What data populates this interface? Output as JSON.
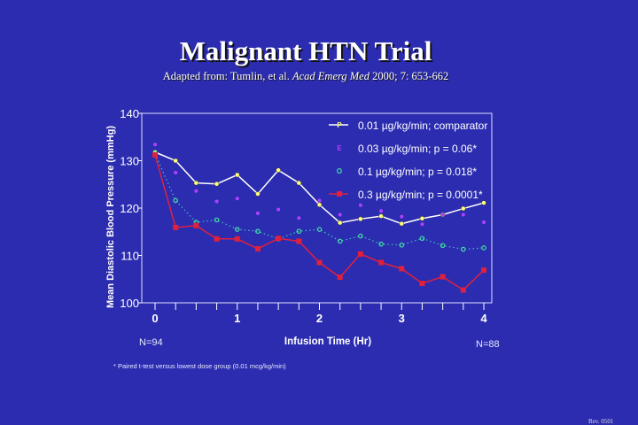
{
  "header": {
    "title": "Malignant HTN Trial",
    "subtitle_prefix": "Adapted from: Tumlin, et al. ",
    "subtitle_journal": "Acad Emerg Med",
    "subtitle_suffix": " 2000; 7:  653-662"
  },
  "chart_data": {
    "type": "line",
    "xlabel": "Infusion Time (Hr)",
    "ylabel": "Mean Diastolic Blood Pressure (mmHg)",
    "xlim": [
      0,
      4
    ],
    "ylim": [
      100,
      140
    ],
    "xticks": [
      "0",
      "1",
      "2",
      "3",
      "4"
    ],
    "yticks": [
      "100",
      "110",
      "120",
      "130",
      "140"
    ],
    "x": [
      0,
      0.25,
      0.5,
      0.75,
      1,
      1.25,
      1.5,
      1.75,
      2,
      2.25,
      2.5,
      2.75,
      3,
      3.25,
      3.5,
      3.75,
      4
    ],
    "legend_position": "top-right",
    "series": [
      {
        "name": "0.01 µg/kg/min; comparator",
        "marker": "P",
        "color": "#ffffff",
        "marker_color": "#ffff80",
        "style": "solid",
        "values": [
          131.8,
          130.0,
          125.3,
          125.1,
          127.0,
          123.0,
          128.0,
          125.3,
          120.7,
          116.9,
          117.7,
          118.3,
          116.7,
          117.8,
          118.6,
          119.9,
          121.1
        ]
      },
      {
        "name": "0.03 µg/kg/min; p = 0.06*",
        "marker": "E",
        "color": "#b040ff",
        "marker_color": "#b040ff",
        "style": "none",
        "values": [
          133.4,
          127.5,
          123.6,
          121.4,
          122.0,
          118.9,
          119.7,
          117.9,
          121.6,
          118.6,
          120.6,
          119.4,
          118.2,
          116.6,
          118.6,
          118.6,
          117.0
        ]
      },
      {
        "name": "0.1   µg/kg/min; p = 0.018*",
        "marker": "O",
        "color": "#40c0c0",
        "marker_color": "#40e0a0",
        "style": "dotted",
        "values": [
          131.5,
          121.6,
          117.0,
          117.5,
          115.5,
          115.1,
          113.5,
          115.1,
          115.5,
          113.0,
          114.1,
          112.4,
          112.2,
          113.6,
          112.1,
          111.3,
          111.6
        ]
      },
      {
        "name": "0.3   µg/kg/min; p = 0.0001*",
        "marker": "■",
        "color": "#e0203c",
        "marker_color": "#e0203c",
        "style": "solid",
        "values": [
          131.2,
          115.9,
          116.3,
          113.5,
          113.5,
          111.4,
          113.6,
          113.0,
          108.5,
          105.4,
          110.3,
          108.5,
          107.2,
          104.1,
          105.5,
          102.7,
          106.9
        ]
      }
    ],
    "annotations": {
      "n_start": "N=94",
      "n_end": "N=88"
    }
  },
  "footnote": "* Paired t-test versus lowest dose group (0.01 mcg/kg/min)",
  "revision": "Rev. 0501"
}
